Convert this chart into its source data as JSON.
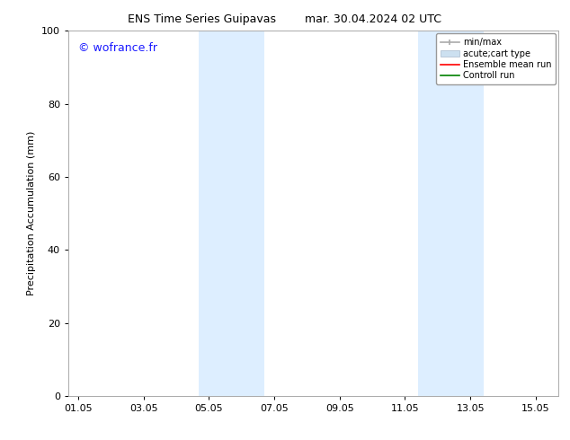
{
  "title_left": "ENS Time Series Guipavas",
  "title_right": "mar. 30.04.2024 02 UTC",
  "ylabel": "Precipitation Accumulation (mm)",
  "ylim": [
    0,
    100
  ],
  "yticks": [
    0,
    20,
    40,
    60,
    80,
    100
  ],
  "xtick_labels": [
    "01.05",
    "03.05",
    "05.05",
    "07.05",
    "09.05",
    "11.05",
    "13.05",
    "15.05"
  ],
  "xtick_values": [
    0,
    2,
    4,
    6,
    8,
    10,
    12,
    14
  ],
  "xmin": -0.3,
  "xmax": 14.7,
  "blue_bands": [
    {
      "xmin": 3.7,
      "xmax": 5.7
    },
    {
      "xmin": 10.4,
      "xmax": 12.4
    }
  ],
  "blue_band_color": "#ddeeff",
  "background_color": "#ffffff",
  "watermark_text": "© wofrance.fr",
  "watermark_color": "#1a1aff",
  "font_size_title": 9,
  "font_size_axis_label": 8,
  "font_size_ticks": 8,
  "font_size_legend": 7,
  "font_size_watermark": 9,
  "legend_gray_color": "#aaaaaa",
  "legend_blue_color": "#cce0f0",
  "legend_red_color": "#ff0000",
  "legend_green_color": "#008000"
}
